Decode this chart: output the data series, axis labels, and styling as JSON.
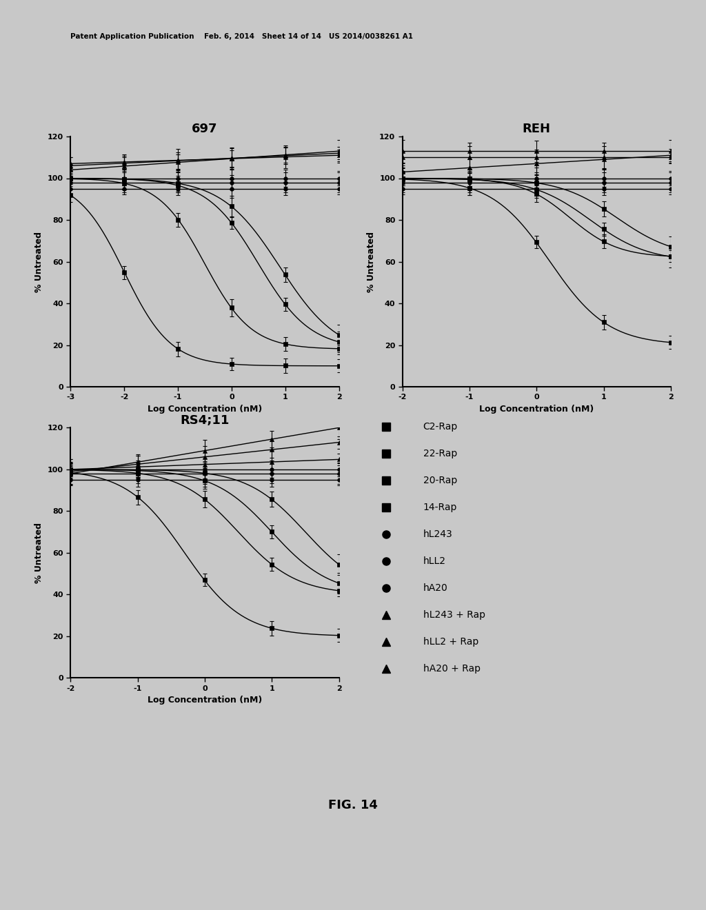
{
  "fig_title": "FIG. 14",
  "header_text": "Patent Application Publication    Feb. 6, 2014   Sheet 14 of 14   US 2014/0038261 A1",
  "bg_color": "#c8c8c8",
  "plot_bg": "#c8c8c8",
  "plots": [
    {
      "title": "697",
      "xlim": [
        -3,
        2
      ],
      "xticks": [
        -3,
        -2,
        -1,
        0,
        1,
        2
      ],
      "ylim": [
        0,
        120
      ],
      "yticks": [
        0,
        20,
        40,
        60,
        80,
        100,
        120
      ]
    },
    {
      "title": "REH",
      "xlim": [
        -2,
        2
      ],
      "xticks": [
        -2,
        -1,
        0,
        1,
        2
      ],
      "ylim": [
        0,
        120
      ],
      "yticks": [
        0,
        20,
        40,
        60,
        80,
        100,
        120
      ]
    },
    {
      "title": "RS4;11",
      "xlim": [
        -2,
        2
      ],
      "xticks": [
        -2,
        -1,
        0,
        1,
        2
      ],
      "ylim": [
        0,
        120
      ],
      "yticks": [
        0,
        20,
        40,
        60,
        80,
        100,
        120
      ]
    }
  ],
  "legend_entries": [
    {
      "label": "C2-Rap",
      "marker": "s"
    },
    {
      "label": "22-Rap",
      "marker": "s"
    },
    {
      "label": "20-Rap",
      "marker": "s"
    },
    {
      "label": "14-Rap",
      "marker": "s"
    },
    {
      "label": "hL243",
      "marker": "o"
    },
    {
      "label": "hLL2",
      "marker": "o"
    },
    {
      "label": "hA20",
      "marker": "o"
    },
    {
      "label": "hL243 + Rap",
      "marker": "^"
    },
    {
      "label": "hLL2 + Rap",
      "marker": "^"
    },
    {
      "label": "hA20 + Rap",
      "marker": "^"
    }
  ]
}
